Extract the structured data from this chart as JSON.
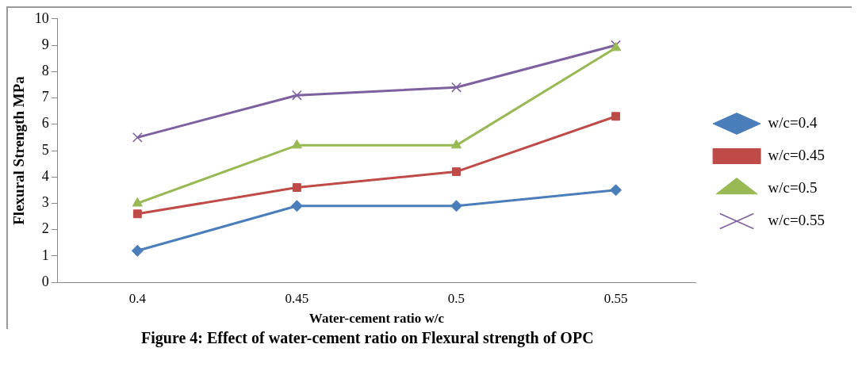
{
  "chart_data": {
    "type": "line",
    "xlabel": "Water-cement ratio w/c",
    "ylabel": "Flexural Strength MPa",
    "categories": [
      "0.4",
      "0.45",
      "0.5",
      "0.55"
    ],
    "series": [
      {
        "name": "w/c=0.4",
        "color": "#4a7ebb",
        "marker": "diamond",
        "values": [
          1.2,
          2.9,
          2.9,
          3.5
        ]
      },
      {
        "name": "w/c=0.45",
        "color": "#be4b48",
        "marker": "square",
        "values": [
          2.6,
          3.6,
          4.2,
          6.3
        ]
      },
      {
        "name": "w/c=0.5",
        "color": "#98b954",
        "marker": "triangle",
        "values": [
          3.0,
          5.2,
          5.2,
          8.9
        ]
      },
      {
        "name": "w/c=0.55",
        "color": "#7d60a0",
        "marker": "cross",
        "values": [
          5.5,
          7.1,
          7.4,
          9.0
        ]
      }
    ],
    "ylim": [
      0,
      10
    ],
    "yticks": [
      0,
      1,
      2,
      3,
      4,
      5,
      6,
      7,
      8,
      9,
      10
    ],
    "grid": false,
    "legend": "right",
    "annotations": [
      "Figure 4: Effect of water-cement ratio on Flexural strength of OPC"
    ]
  }
}
